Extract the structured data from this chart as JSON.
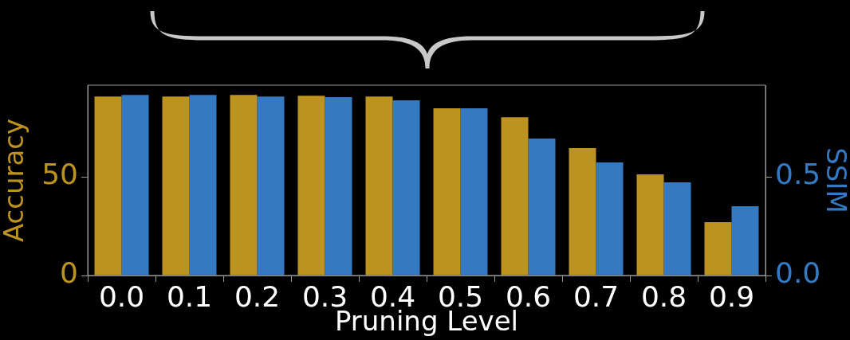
{
  "chart_data": {
    "type": "bar",
    "xlabel": "Pruning Level",
    "ylabel": "Accuracy",
    "y2label": "SSIM",
    "categories": [
      "0.0",
      "0.1",
      "0.2",
      "0.3",
      "0.4",
      "0.5",
      "0.6",
      "0.7",
      "0.8",
      "0.9"
    ],
    "series": [
      {
        "color": "#bd931f",
        "values": [
          90.7,
          90.7,
          91.5,
          91.1,
          90.7,
          84.7,
          80.2,
          64.5,
          51.2,
          27.0
        ]
      },
      {
        "color": "#337ac2",
        "axis": "y2",
        "values": [
          0.915,
          0.915,
          0.907,
          0.903,
          0.887,
          0.847,
          0.694,
          0.573,
          0.472,
          0.351
        ]
      }
    ],
    "ylim": [
      0,
      96.4
    ],
    "yticks": [
      0,
      50
    ],
    "y2lim": [
      0,
      0.964
    ],
    "y2ticks": [
      {
        "value": 0,
        "label": "0.0"
      },
      0.5
    ],
    "grid": false,
    "legend": false
  }
}
